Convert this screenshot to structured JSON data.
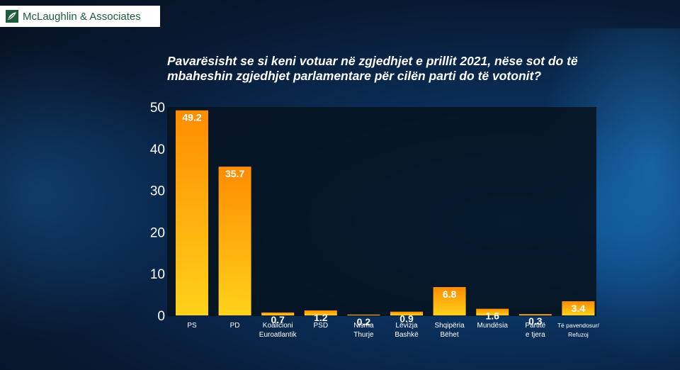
{
  "logo": {
    "text": "McLaughlin & Associates",
    "icon": "leaf-logo-icon",
    "color": "#1d5c3a"
  },
  "chart_data": {
    "type": "bar",
    "title": "Pavarësisht se si keni votuar në zgjedhjet e prillit 2021, nëse sot do të mbaheshin zgjedhjet parlamentare për cilën parti do të votonit?",
    "categories": [
      [
        "PS"
      ],
      [
        "PD"
      ],
      [
        "Koalicioni",
        "Euroatlantik"
      ],
      [
        "PSD"
      ],
      [
        "Nisma",
        "Thurje"
      ],
      [
        "Lëvizja",
        "Bashkë"
      ],
      [
        "Shqipëria",
        "Bëhet"
      ],
      [
        "Mundësia"
      ],
      [
        "Partitë",
        "e tjera"
      ],
      [
        "Të pavendosur/",
        "Refuzoj"
      ]
    ],
    "values": [
      49.2,
      35.7,
      0.7,
      1.2,
      0.2,
      0.9,
      6.8,
      1.6,
      0.3,
      3.4
    ],
    "value_labels": [
      "49.2",
      "35.7",
      "0.7",
      "1.2",
      "0.2",
      "0.9",
      "6.8",
      "1.6",
      "0.3",
      "3.4"
    ],
    "ylim": [
      0,
      50
    ],
    "yticks": [
      "0",
      "10",
      "20",
      "30",
      "40",
      "50"
    ],
    "xlabel": "",
    "ylabel": "",
    "grid": false,
    "bar_color_top": "#ff8c00",
    "bar_color_bottom": "#ffd21a"
  }
}
